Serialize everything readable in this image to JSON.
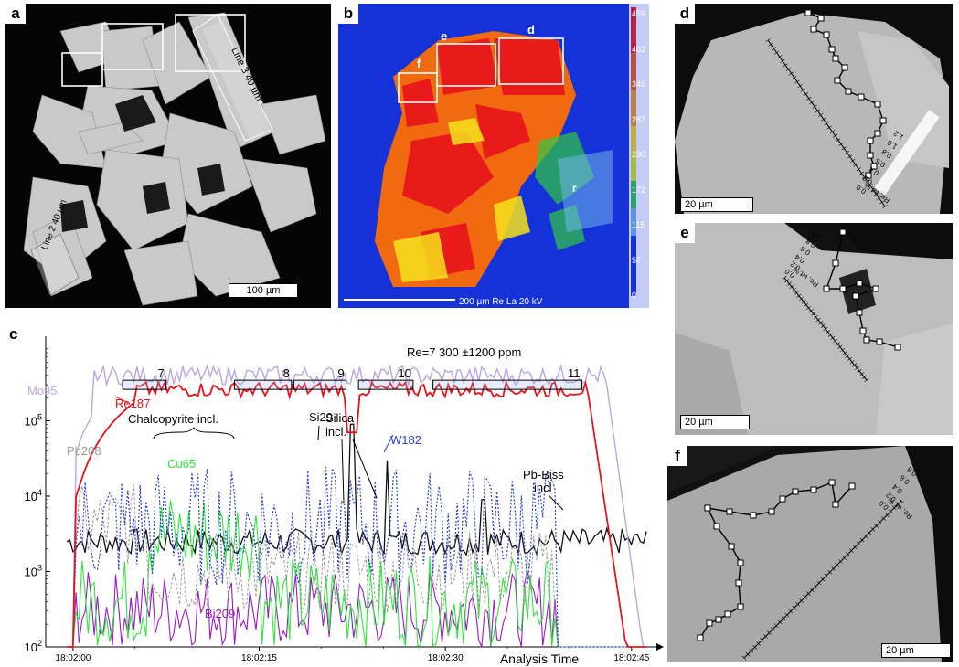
{
  "panels": {
    "a": {
      "label": "a",
      "scale": "100 µm",
      "line2": "Line 2  40 µm",
      "line3": "Line 3   40 µm"
    },
    "b": {
      "label": "b",
      "box_labels": [
        "e",
        "d",
        "f",
        "r"
      ],
      "footer": "200 µm  Re La 20 kV",
      "colorbar_ticks": [
        "459",
        "402",
        "345",
        "287",
        "230",
        "172",
        "115",
        "57",
        "0"
      ]
    },
    "d": {
      "label": "d",
      "scale": "20 µm",
      "profile_axis_label": "Re, wt.%",
      "profile_ticks": [
        "0.0",
        "0.2",
        "0.4",
        "0.6",
        "0.8",
        "1.0",
        "1.2"
      ]
    },
    "e": {
      "label": "e",
      "scale": "20 µm",
      "profile_axis_label": "Re, wt.%",
      "profile_ticks": [
        "0.0",
        "0.2",
        "0.4",
        "0.6",
        "0.8",
        "1.0"
      ]
    },
    "f": {
      "label": "f",
      "scale": "20 µm",
      "profile_axis_label": "Re, wt.%",
      "profile_ticks": [
        "0.0",
        "0.2",
        "0.4",
        "0.6",
        "0.8"
      ]
    }
  },
  "chart_data": {
    "type": "line",
    "panel_label": "c",
    "y_scale": "log",
    "ylim": [
      100,
      1000000
    ],
    "y_tick_labels": [
      "10^2",
      "10^3",
      "10^4",
      "10^5"
    ],
    "x_tick_labels": [
      "18:02:00",
      "18:02:15",
      "18:02:30",
      "18:02:45"
    ],
    "xlabel": "Analysis Time",
    "series": [
      {
        "name": "Mo95",
        "color": "#b9a6e6"
      },
      {
        "name": "Re187",
        "color": "#e8141b"
      },
      {
        "name": "Pb208",
        "color": "#9a9a9a"
      },
      {
        "name": "Cu65",
        "color": "#2ee83a"
      },
      {
        "name": "W182",
        "color": "#2a3fd6"
      },
      {
        "name": "Bi209",
        "color": "#9b19c9"
      },
      {
        "name": "Si29",
        "color": "#111111"
      }
    ],
    "annotations": {
      "re_value": "Re=7 300 ±1200 ppm",
      "segment_numbers": [
        "7",
        "8",
        "9",
        "10",
        "11"
      ],
      "chalcopyrite": "Chalcopyrite incl.",
      "silica": [
        "Silica",
        "incl."
      ],
      "pbbiss": [
        "Pb-Biss",
        "incl"
      ]
    }
  }
}
